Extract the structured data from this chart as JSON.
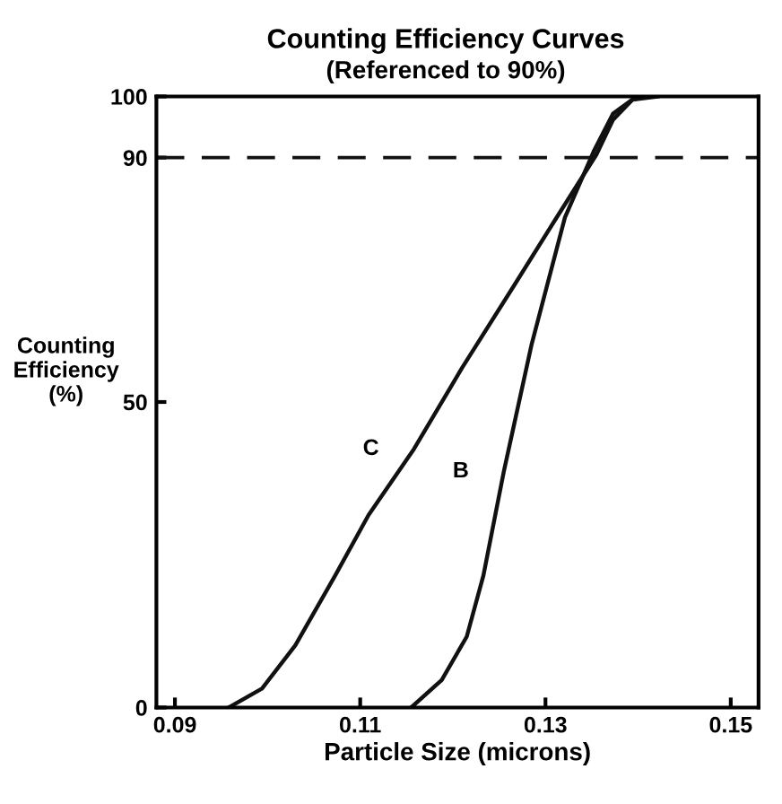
{
  "chart_data": {
    "type": "line",
    "title": "Counting Efficiency Curves",
    "subtitle": "(Referenced to 90%)",
    "xlabel": "Particle Size (microns)",
    "ylabel": "Counting\nEfficiency\n(%)",
    "xlim": [
      0.088,
      0.153
    ],
    "ylim": [
      0,
      100
    ],
    "xticks": [
      0.09,
      0.11,
      0.13,
      0.15
    ],
    "yticks": [
      0,
      50,
      90,
      100
    ],
    "grid": false,
    "legend": false,
    "marker": "none",
    "line_style": "solid",
    "series": [
      {
        "name": "C",
        "color": "#111111",
        "x": [
          0.0958,
          0.0994,
          0.103,
          0.1073,
          0.1109,
          0.1158,
          0.121,
          0.1265,
          0.131,
          0.1355,
          0.1373,
          0.1394,
          0.1412
        ],
        "values": [
          0,
          3.1,
          10.2,
          21.6,
          31.5,
          42.3,
          55.6,
          68.8,
          79.7,
          90.5,
          96.2,
          99.5,
          100
        ]
      },
      {
        "name": "B",
        "color": "#111111",
        "x": [
          0.1155,
          0.1188,
          0.1215,
          0.1233,
          0.1255,
          0.1285,
          0.1321,
          0.1352,
          0.1373,
          0.1394,
          0.1421
        ],
        "values": [
          0,
          4.5,
          11.6,
          21.6,
          38.6,
          59.4,
          80.2,
          91.0,
          97.2,
          99.5,
          100
        ]
      }
    ],
    "ref_lines": [
      {
        "axis": "y",
        "value": 90,
        "label": null,
        "color": "#111111",
        "line_style": "dashed"
      }
    ]
  }
}
